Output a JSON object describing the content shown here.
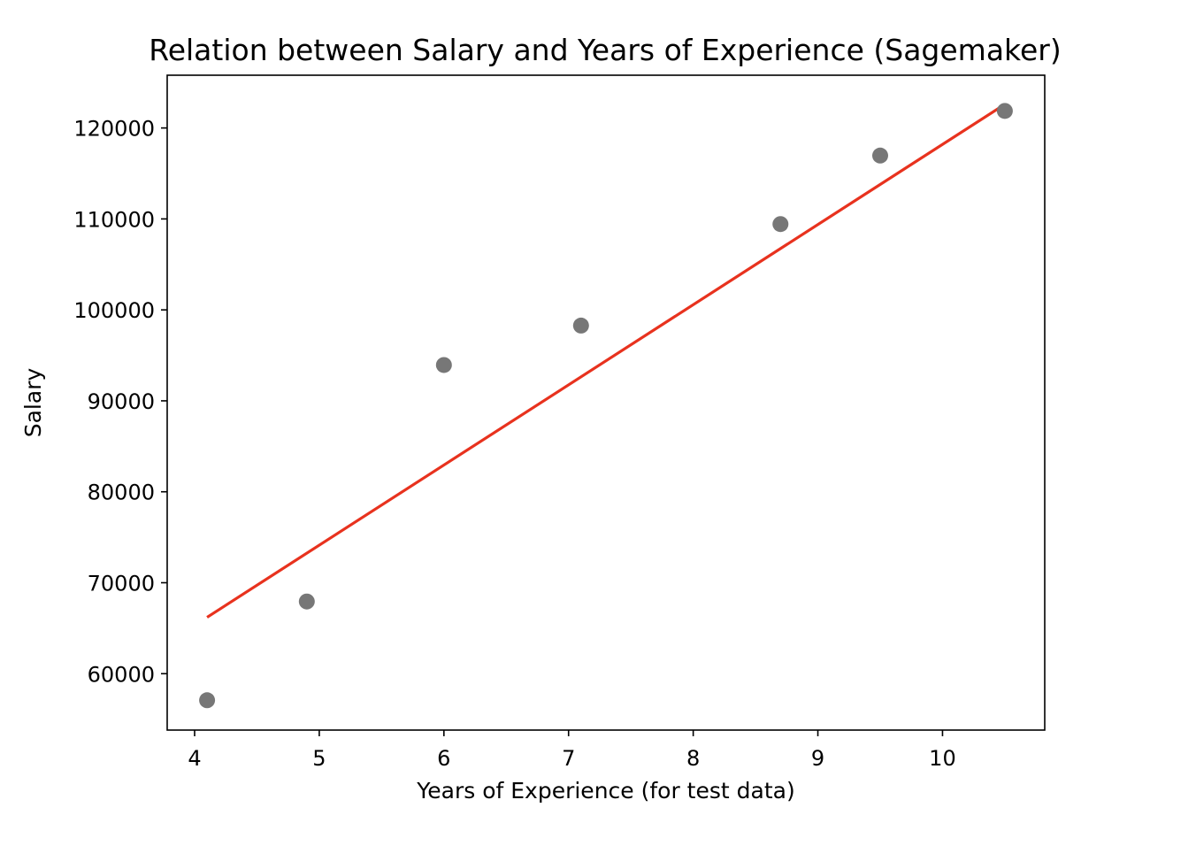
{
  "chart_data": {
    "type": "scatter",
    "title": "Relation between Salary and Years of Experience (Sagemaker)",
    "xlabel": "Years of Experience (for test data)",
    "ylabel": "Salary",
    "xlim": [
      3.78,
      10.82
    ],
    "ylim": [
      53800,
      125800
    ],
    "xticks": [
      4,
      5,
      6,
      7,
      8,
      9,
      10
    ],
    "yticks": [
      60000,
      70000,
      80000,
      90000,
      100000,
      110000,
      120000
    ],
    "grid": false,
    "series": [
      {
        "kind": "scatter",
        "color": "#777777",
        "x": [
          4.1,
          4.9,
          6.0,
          7.1,
          8.7,
          9.5,
          10.5
        ],
        "y": [
          57081,
          67938,
          93940,
          98273,
          109431,
          116969,
          121872
        ]
      },
      {
        "kind": "line",
        "color": "#e8321e",
        "x": [
          4.1,
          10.5
        ],
        "y": [
          66200,
          122600
        ]
      }
    ]
  }
}
